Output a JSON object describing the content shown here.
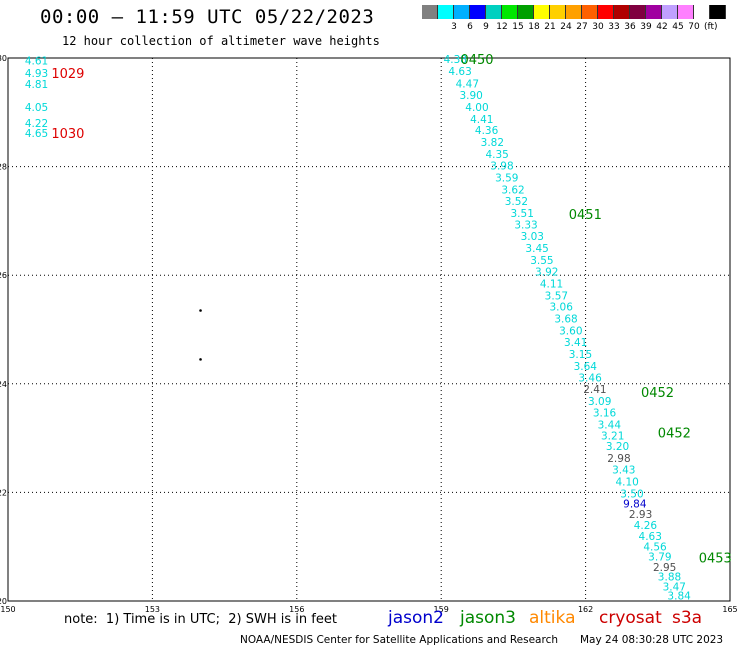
{
  "title": "00:00 – 11:59 UTC 05/22/2023",
  "subtitle": "12 hour collection of altimeter wave heights",
  "colorbar": {
    "colors": [
      "#808080",
      "#00ffff",
      "#00b0ff",
      "#0000ff",
      "#00d0c0",
      "#00e800",
      "#00a000",
      "#ffff00",
      "#ffd000",
      "#ffa000",
      "#ff6000",
      "#ff0000",
      "#b00000",
      "#800040",
      "#a000a0",
      "#c0a0ff",
      "#ff80ff",
      "#ffffff",
      "#000000"
    ],
    "labels": [
      "",
      "3",
      "6",
      "9",
      "12",
      "15",
      "18",
      "21",
      "24",
      "27",
      "30",
      "33",
      "36",
      "39",
      "42",
      "45",
      "70"
    ],
    "unit": "(ft)"
  },
  "note": "note:  1) Time is in UTC;  2) SWH is in feet",
  "credit": "NOAA/NESDIS Center for Satellite Applications and Research",
  "stamp": "May 24 08:30:28 UTC 2023",
  "satellites": [
    {
      "name": "jason2",
      "color": "#0000cc"
    },
    {
      "name": "jason3",
      "color": "#008800"
    },
    {
      "name": "altika",
      "color": "#ff8800"
    },
    {
      "name": "cryosat",
      "color": "#cc0000"
    },
    {
      "name": "s3a",
      "color": "#cc0000"
    }
  ],
  "chart_data": {
    "type": "scatter",
    "xlim": [
      150,
      165
    ],
    "ylim": [
      20,
      30
    ],
    "xticks": [
      "150",
      "153",
      "156",
      "159",
      "162",
      "165"
    ],
    "yticks": [
      "30",
      "28",
      "26",
      "24",
      "22",
      "20"
    ],
    "grid": true,
    "value_color": "#00d8d8",
    "swh_points": [
      {
        "lon": 150.35,
        "lat": 29.95,
        "v": "4.61"
      },
      {
        "lon": 150.35,
        "lat": 29.72,
        "v": "4.93"
      },
      {
        "lon": 150.35,
        "lat": 29.52,
        "v": "4.81"
      },
      {
        "lon": 150.35,
        "lat": 29.1,
        "v": "4.05"
      },
      {
        "lon": 150.35,
        "lat": 28.8,
        "v": "4.22"
      },
      {
        "lon": 150.35,
        "lat": 28.62,
        "v": "4.65"
      },
      {
        "lon": 159.05,
        "lat": 29.98,
        "v": "4.38"
      },
      {
        "lon": 159.15,
        "lat": 29.76,
        "v": "4.63"
      },
      {
        "lon": 159.3,
        "lat": 29.53,
        "v": "4.47"
      },
      {
        "lon": 159.38,
        "lat": 29.32,
        "v": "3.90"
      },
      {
        "lon": 159.5,
        "lat": 29.1,
        "v": "4.00"
      },
      {
        "lon": 159.6,
        "lat": 28.88,
        "v": "4.41"
      },
      {
        "lon": 159.7,
        "lat": 28.67,
        "v": "4.36"
      },
      {
        "lon": 159.82,
        "lat": 28.45,
        "v": "3.82"
      },
      {
        "lon": 159.92,
        "lat": 28.23,
        "v": "4.35"
      },
      {
        "lon": 160.02,
        "lat": 28.02,
        "v": "3.98"
      },
      {
        "lon": 160.12,
        "lat": 27.8,
        "v": "3.59"
      },
      {
        "lon": 160.25,
        "lat": 27.58,
        "v": "3.62"
      },
      {
        "lon": 160.32,
        "lat": 27.37,
        "v": "3.52"
      },
      {
        "lon": 160.44,
        "lat": 27.15,
        "v": "3.51"
      },
      {
        "lon": 160.52,
        "lat": 26.93,
        "v": "3.33"
      },
      {
        "lon": 160.65,
        "lat": 26.72,
        "v": "3.03"
      },
      {
        "lon": 160.75,
        "lat": 26.5,
        "v": "3.45"
      },
      {
        "lon": 160.85,
        "lat": 26.28,
        "v": "3.55"
      },
      {
        "lon": 160.95,
        "lat": 26.07,
        "v": "3.92"
      },
      {
        "lon": 161.05,
        "lat": 25.85,
        "v": "4.11"
      },
      {
        "lon": 161.15,
        "lat": 25.63,
        "v": "3.57"
      },
      {
        "lon": 161.25,
        "lat": 25.42,
        "v": "3.06"
      },
      {
        "lon": 161.35,
        "lat": 25.2,
        "v": "3.68"
      },
      {
        "lon": 161.45,
        "lat": 24.98,
        "v": "3.60"
      },
      {
        "lon": 161.55,
        "lat": 24.77,
        "v": "3.41"
      },
      {
        "lon": 161.65,
        "lat": 24.55,
        "v": "3.15"
      },
      {
        "lon": 161.75,
        "lat": 24.33,
        "v": "3.64"
      },
      {
        "lon": 161.85,
        "lat": 24.12,
        "v": "3.46"
      },
      {
        "lon": 161.95,
        "lat": 23.9,
        "v": "2.41",
        "c": "#505050"
      },
      {
        "lon": 162.05,
        "lat": 23.68,
        "v": "3.09"
      },
      {
        "lon": 162.15,
        "lat": 23.47,
        "v": "3.16"
      },
      {
        "lon": 162.25,
        "lat": 23.25,
        "v": "3.44"
      },
      {
        "lon": 162.32,
        "lat": 23.05,
        "v": "3.21"
      },
      {
        "lon": 162.42,
        "lat": 22.85,
        "v": "3.20"
      },
      {
        "lon": 162.45,
        "lat": 22.63,
        "v": "2.98",
        "c": "#505050"
      },
      {
        "lon": 162.55,
        "lat": 22.42,
        "v": "3.43"
      },
      {
        "lon": 162.62,
        "lat": 22.2,
        "v": "4.10"
      },
      {
        "lon": 162.72,
        "lat": 21.98,
        "v": "3.50"
      },
      {
        "lon": 162.78,
        "lat": 21.8,
        "v": "9.84",
        "c": "#0000cc"
      },
      {
        "lon": 162.9,
        "lat": 21.6,
        "v": "2.93",
        "c": "#505050"
      },
      {
        "lon": 163.0,
        "lat": 21.4,
        "v": "4.26"
      },
      {
        "lon": 163.1,
        "lat": 21.2,
        "v": "4.63"
      },
      {
        "lon": 163.2,
        "lat": 21.0,
        "v": "4.56"
      },
      {
        "lon": 163.3,
        "lat": 20.82,
        "v": "3.79"
      },
      {
        "lon": 163.4,
        "lat": 20.63,
        "v": "2.95",
        "c": "#505050"
      },
      {
        "lon": 163.5,
        "lat": 20.45,
        "v": "3.88"
      },
      {
        "lon": 163.6,
        "lat": 20.27,
        "v": "3.47"
      },
      {
        "lon": 163.7,
        "lat": 20.1,
        "v": "3.84"
      }
    ],
    "pass_labels": [
      {
        "lon": 150.9,
        "lat": 29.72,
        "text": "1029",
        "color": "#dd0000"
      },
      {
        "lon": 150.9,
        "lat": 28.62,
        "text": "1030",
        "color": "#dd0000"
      },
      {
        "lon": 159.4,
        "lat": 29.98,
        "text": "0450",
        "color": "#008800"
      },
      {
        "lon": 161.65,
        "lat": 27.13,
        "text": "0451",
        "color": "#008800"
      },
      {
        "lon": 163.15,
        "lat": 23.85,
        "text": "0452",
        "color": "#008800"
      },
      {
        "lon": 163.5,
        "lat": 23.1,
        "text": "0452",
        "color": "#008800"
      },
      {
        "lon": 164.35,
        "lat": 20.8,
        "text": "0453",
        "color": "#008800"
      }
    ],
    "dots": [
      {
        "lon": 154.0,
        "lat": 25.35
      },
      {
        "lon": 154.0,
        "lat": 24.45
      }
    ]
  }
}
